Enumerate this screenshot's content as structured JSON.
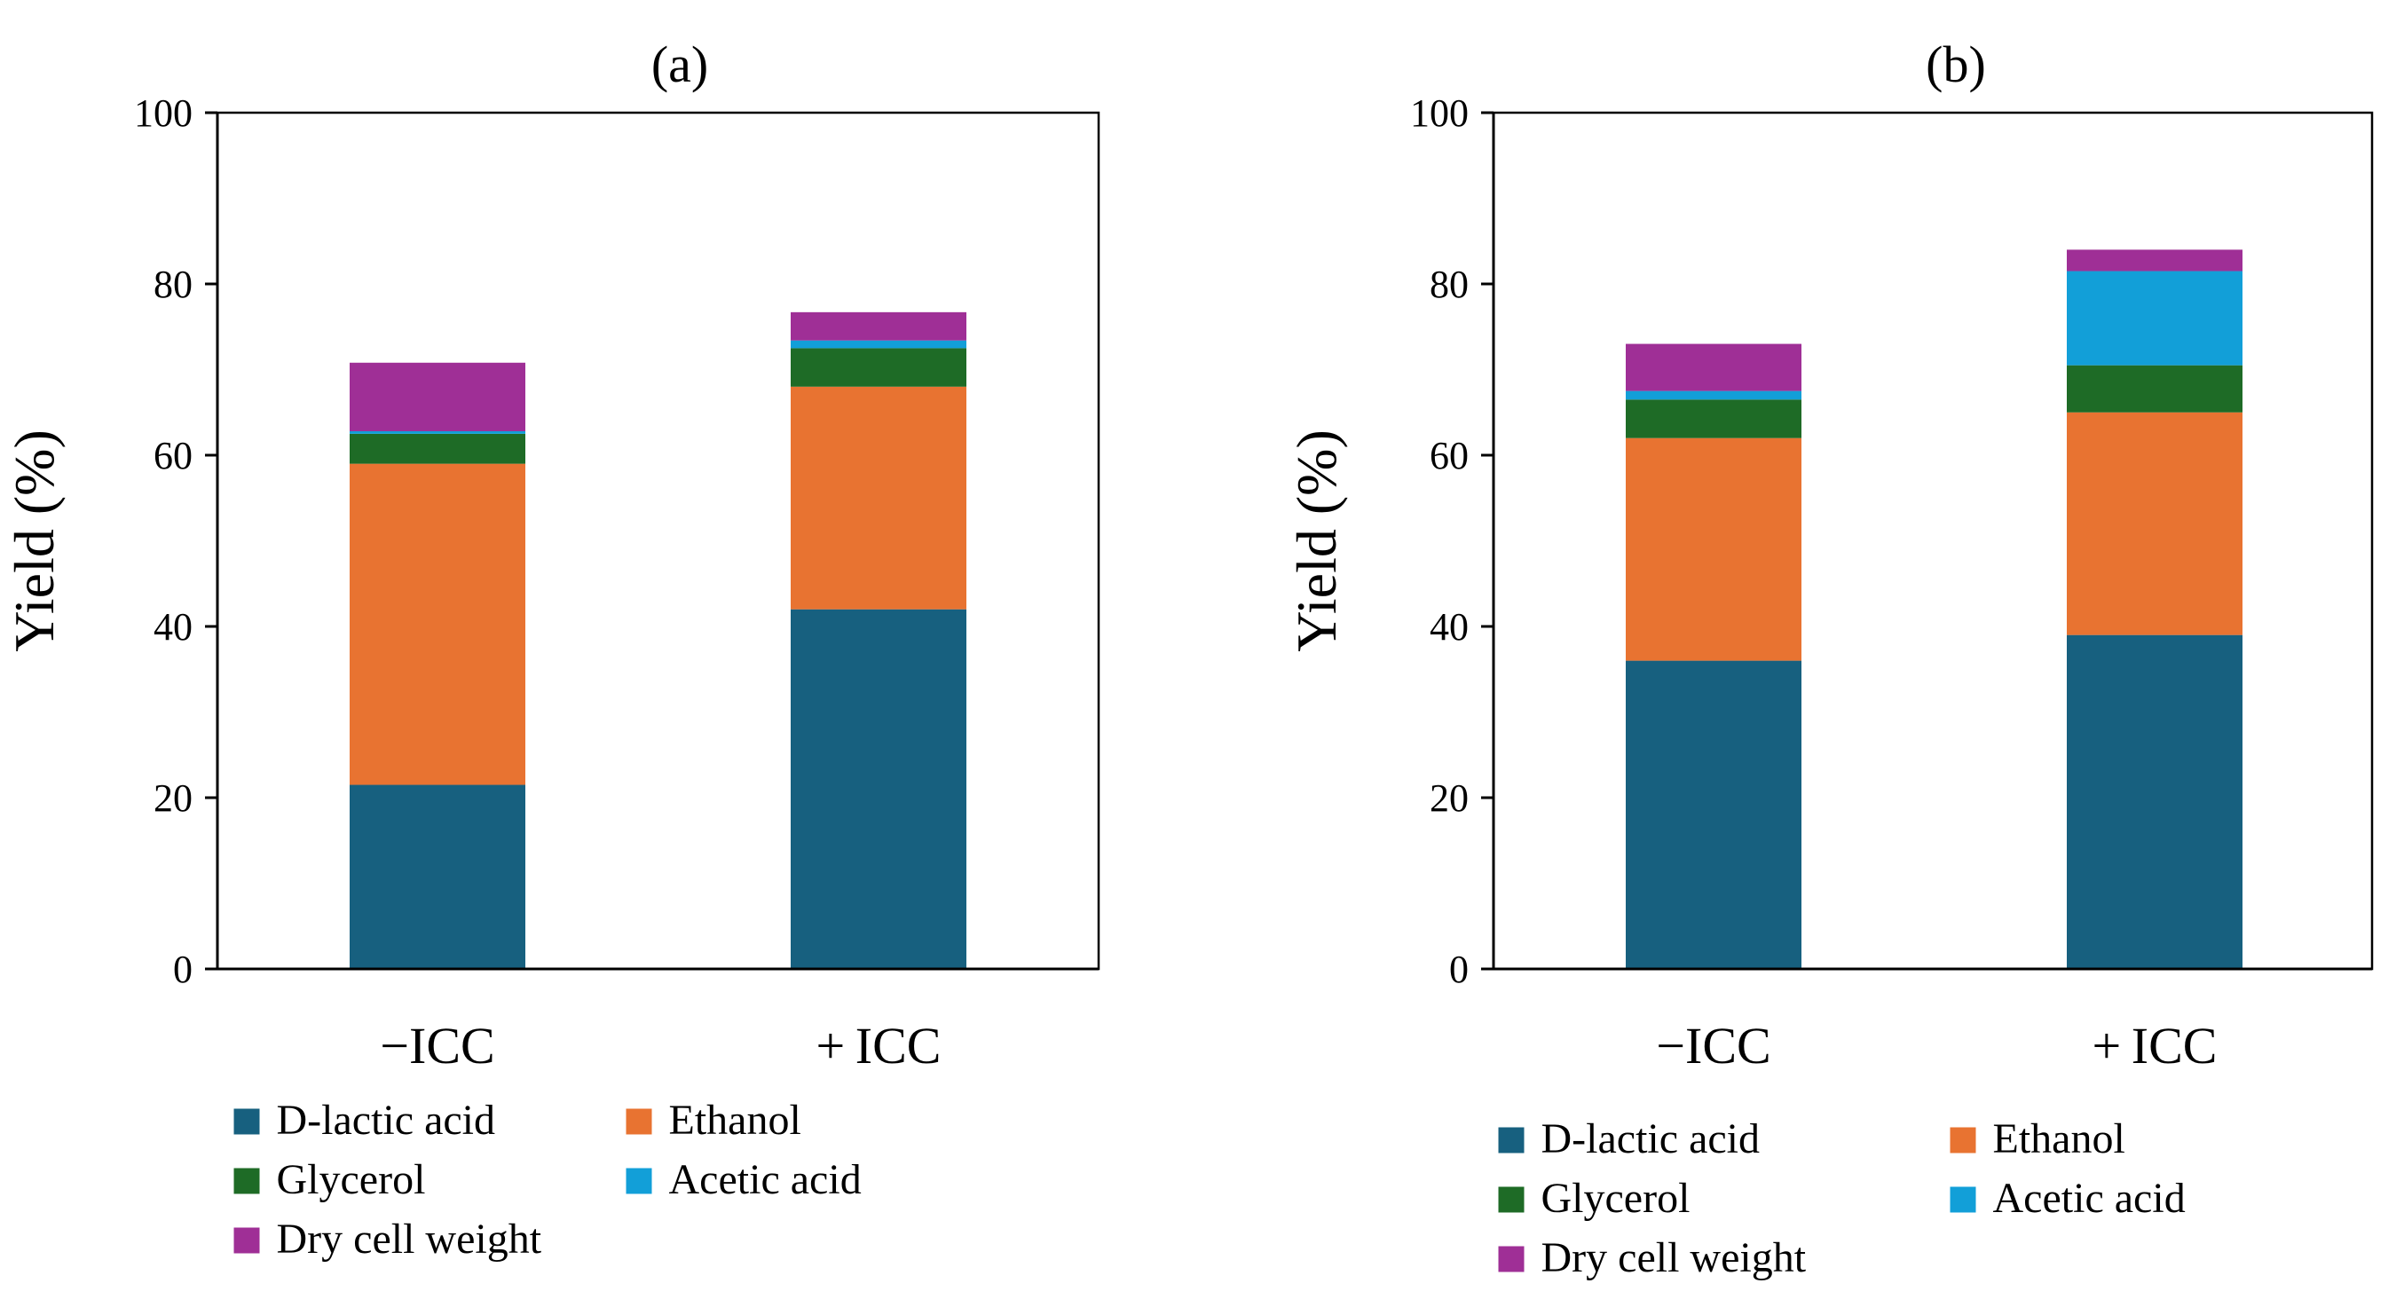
{
  "chart_data": [
    {
      "type": "bar",
      "stacked": true,
      "title": "(a)",
      "xlabel": "",
      "ylabel": "Yield (%)",
      "ylim": [
        0,
        100
      ],
      "yticks": [
        "0",
        "20",
        "40",
        "60",
        "80",
        "100"
      ],
      "categories": [
        "−ICC",
        "+ ICC"
      ],
      "series": [
        {
          "name": "D-lactic acid",
          "color": "#17607f",
          "values": [
            21.5,
            42.0
          ]
        },
        {
          "name": "Ethanol",
          "color": "#e87331",
          "values": [
            37.5,
            26.0
          ]
        },
        {
          "name": "Glycerol",
          "color": "#1e6b26",
          "values": [
            3.5,
            4.5
          ]
        },
        {
          "name": "Acetic acid",
          "color": "#129fd8",
          "values": [
            0.3,
            0.9
          ]
        },
        {
          "name": "Dry cell weight",
          "color": "#9f2f96",
          "values": [
            8.0,
            3.3
          ]
        }
      ],
      "legend_position": "bottom"
    },
    {
      "type": "bar",
      "stacked": true,
      "title": "(b)",
      "xlabel": "",
      "ylabel": "Yield (%)",
      "ylim": [
        0,
        100
      ],
      "yticks": [
        "0",
        "20",
        "40",
        "60",
        "80",
        "100"
      ],
      "categories": [
        "−ICC",
        "+ ICC"
      ],
      "series": [
        {
          "name": "D-lactic acid",
          "color": "#17607f",
          "values": [
            36.0,
            39.0
          ]
        },
        {
          "name": "Ethanol",
          "color": "#e87331",
          "values": [
            26.0,
            26.0
          ]
        },
        {
          "name": "Glycerol",
          "color": "#1e6b26",
          "values": [
            4.5,
            5.5
          ]
        },
        {
          "name": "Acetic acid",
          "color": "#129fd8",
          "values": [
            1.0,
            11.0
          ]
        },
        {
          "name": "Dry cell weight",
          "color": "#9f2f96",
          "values": [
            5.5,
            2.5
          ]
        }
      ],
      "legend_position": "bottom"
    }
  ]
}
